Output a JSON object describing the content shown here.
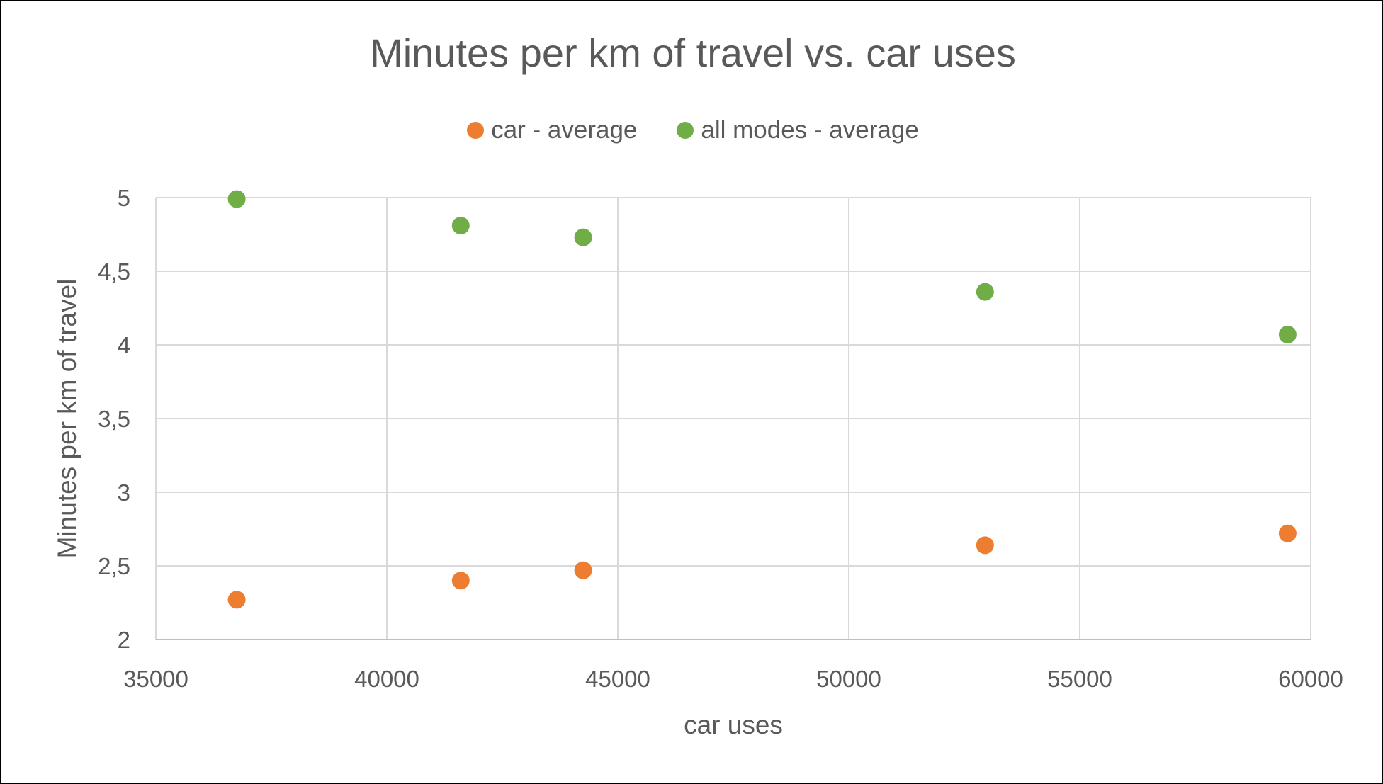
{
  "chart_data": {
    "type": "scatter",
    "title": "Minutes per km of travel vs. car uses",
    "xlabel": "car uses",
    "ylabel": "Minutes per km of travel",
    "xlim": [
      35000,
      60000
    ],
    "ylim": [
      2,
      5
    ],
    "x_ticks": [
      35000,
      40000,
      45000,
      50000,
      55000,
      60000
    ],
    "y_ticks": [
      2,
      2.5,
      3,
      3.5,
      4,
      4.5,
      5
    ],
    "x_tick_labels": [
      "35000",
      "40000",
      "45000",
      "50000",
      "55000",
      "60000"
    ],
    "y_tick_labels": [
      "2",
      "2,5",
      "3",
      "3,5",
      "4",
      "4,5",
      "5"
    ],
    "grid": true,
    "legend_position": "top",
    "series": [
      {
        "name": "car - average",
        "color": "#ED7D31",
        "points": [
          {
            "x": 36750,
            "y": 2.27
          },
          {
            "x": 41600,
            "y": 2.4
          },
          {
            "x": 44250,
            "y": 2.47
          },
          {
            "x": 52950,
            "y": 2.64
          },
          {
            "x": 59500,
            "y": 2.72
          }
        ]
      },
      {
        "name": "all modes - average",
        "color": "#70AD47",
        "points": [
          {
            "x": 36750,
            "y": 4.99
          },
          {
            "x": 41600,
            "y": 4.81
          },
          {
            "x": 44250,
            "y": 4.73
          },
          {
            "x": 52950,
            "y": 4.36
          },
          {
            "x": 59500,
            "y": 4.07
          }
        ]
      }
    ]
  }
}
